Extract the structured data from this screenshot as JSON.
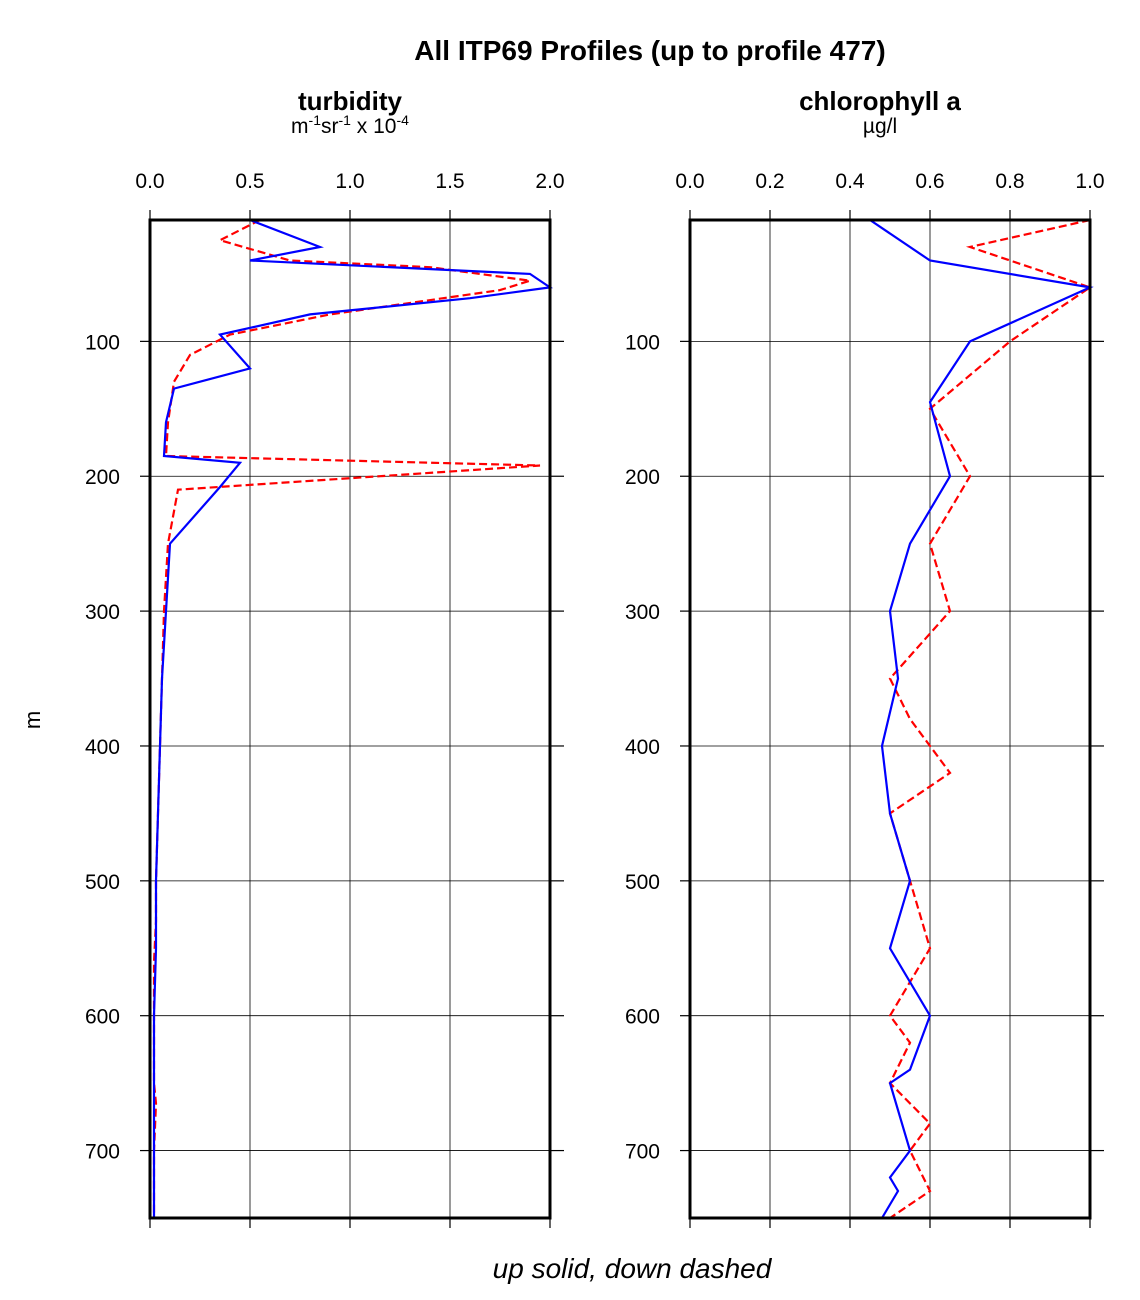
{
  "chart_data": {
    "title": "All ITP69 Profiles (up to profile 477)",
    "caption": "up solid, down dashed",
    "ylabel": "m",
    "legend": {
      "up": "solid",
      "down": "dashed"
    },
    "colors": {
      "up": "#0000ff",
      "down": "#ff0000"
    },
    "y": {
      "range": [
        750,
        10
      ],
      "ticks": [
        100,
        200,
        300,
        400,
        500,
        600,
        700
      ],
      "reversed": true
    },
    "panels": [
      {
        "type": "line",
        "title": "turbidity",
        "unit": {
          "a": "m",
          "b": "-1",
          "c": "sr",
          "d": "-1",
          "e": " x 10",
          "f": "-4"
        },
        "xlim": [
          0.0,
          2.0
        ],
        "xticks": [
          "0.0",
          "0.5",
          "1.0",
          "1.5",
          "2.0"
        ],
        "grid": true,
        "series": [
          {
            "style": "down-dashed",
            "x": [
              0.55,
              0.35,
              0.7,
              1.4,
              1.9,
              1.75,
              0.9,
              0.4,
              0.2,
              0.12,
              0.09,
              0.08,
              1.95,
              0.14,
              0.09,
              0.07,
              0.06,
              0.05,
              0.04,
              0.03,
              0.03,
              0.02,
              0.02,
              0.02,
              0.03,
              0.02,
              0.02,
              0.02
            ],
            "y": [
              10,
              25,
              40,
              45,
              55,
              62,
              80,
              95,
              110,
              130,
              160,
              185,
              192,
              210,
              250,
              300,
              350,
              400,
              450,
              500,
              530,
              560,
              600,
              650,
              665,
              700,
              730,
              750
            ]
          },
          {
            "style": "up-solid",
            "x": [
              0.5,
              0.85,
              0.5,
              1.9,
              2.0,
              1.6,
              0.8,
              0.35,
              0.5,
              0.12,
              0.08,
              0.07,
              0.45,
              0.35,
              0.1,
              0.08,
              0.06,
              0.05,
              0.04,
              0.03,
              0.03,
              0.02,
              0.02,
              0.02,
              0.02,
              0.02
            ],
            "y": [
              10,
              30,
              40,
              50,
              60,
              68,
              80,
              95,
              120,
              135,
              160,
              185,
              190,
              208,
              250,
              300,
              350,
              400,
              450,
              500,
              550,
              600,
              650,
              700,
              730,
              750
            ]
          }
        ]
      },
      {
        "type": "line",
        "title": "chlorophyll a",
        "unit": {
          "a": "µg/l"
        },
        "xlim": [
          0.0,
          1.0
        ],
        "xticks": [
          "0.0",
          "0.2",
          "0.4",
          "0.6",
          "0.8",
          "1.0"
        ],
        "grid": true,
        "series": [
          {
            "style": "down-dashed",
            "x": [
              1.0,
              0.7,
              1.0,
              0.8,
              0.6,
              0.7,
              0.6,
              0.65,
              0.5,
              0.55,
              0.65,
              0.5,
              0.55,
              0.6,
              0.5,
              0.55,
              0.5,
              0.6,
              0.55,
              0.6,
              0.5
            ],
            "y": [
              10,
              30,
              60,
              100,
              150,
              200,
              250,
              300,
              350,
              380,
              420,
              450,
              500,
              550,
              600,
              620,
              650,
              680,
              700,
              730,
              750
            ]
          },
          {
            "style": "up-solid",
            "x": [
              0.45,
              0.6,
              1.0,
              0.7,
              0.6,
              0.65,
              0.55,
              0.5,
              0.52,
              0.48,
              0.5,
              0.55,
              0.5,
              0.6,
              0.55,
              0.5,
              0.55,
              0.5,
              0.52,
              0.5,
              0.48
            ],
            "y": [
              10,
              40,
              60,
              100,
              145,
              200,
              250,
              300,
              350,
              400,
              450,
              500,
              550,
              600,
              640,
              650,
              700,
              720,
              730,
              740,
              750
            ]
          }
        ]
      }
    ]
  }
}
